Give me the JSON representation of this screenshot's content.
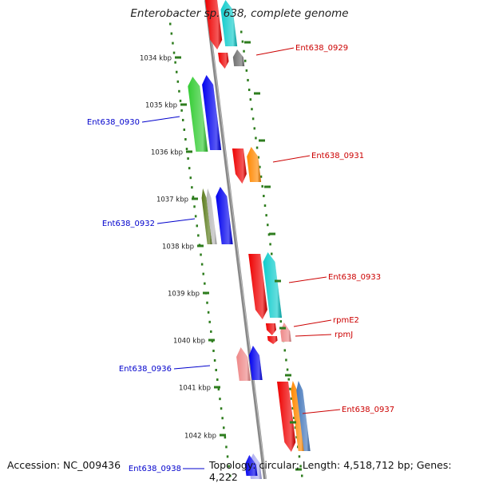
{
  "title": "Enterobacter sp. 638, complete genome",
  "footer": {
    "accession": "Accession: NC_009436",
    "summary": "Topology: circular; Length: 4,518,712 bp; Genes: 4,222"
  },
  "colors": {
    "backbone": "#888888",
    "tick": "#2e7d1e",
    "forward_label": "#cc0000",
    "reverse_label": "#0000cc"
  },
  "ticks": [
    "1034 kbp",
    "1035 kbp",
    "1036 kbp",
    "1037 kbp",
    "1038 kbp",
    "1039 kbp",
    "1040 kbp",
    "1041 kbp",
    "1042 kbp"
  ],
  "gene_labels": [
    {
      "text": "Ent638_0929",
      "strand": "forward"
    },
    {
      "text": "Ent638_0930",
      "strand": "reverse"
    },
    {
      "text": "Ent638_0931",
      "strand": "forward"
    },
    {
      "text": "Ent638_0932",
      "strand": "reverse"
    },
    {
      "text": "Ent638_0933",
      "strand": "forward"
    },
    {
      "text": "rpmE2",
      "strand": "forward"
    },
    {
      "text": "rpmJ",
      "strand": "forward"
    },
    {
      "text": "Ent638_0936",
      "strand": "reverse"
    },
    {
      "text": "Ent638_0937",
      "strand": "forward"
    },
    {
      "text": "Ent638_0938",
      "strand": "reverse"
    }
  ],
  "feature_colors": {
    "red": "#ee0000",
    "cyan": "#11cccc",
    "gray": "#6e6e6e",
    "green": "#33cc33",
    "blue": "#0000ee",
    "orange": "#ff8800",
    "olive": "#5a7a1a",
    "silver": "#b8b8b8",
    "pink": "#ee8888",
    "steel": "#4477bb",
    "lavender": "#aaaaee"
  }
}
